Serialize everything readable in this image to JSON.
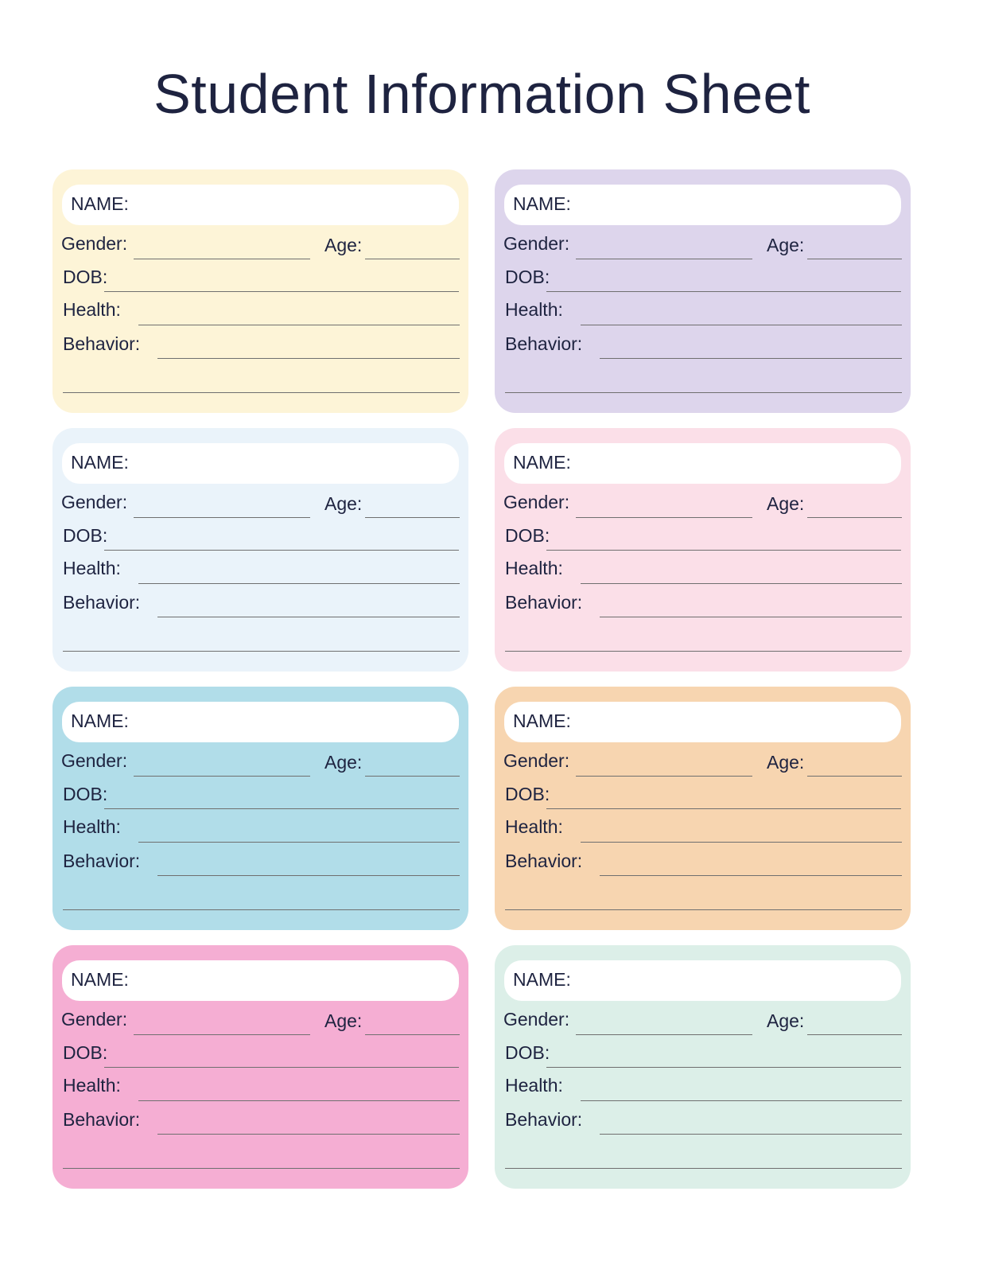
{
  "title": "Student Information Sheet",
  "labels": {
    "name": "NAME:",
    "gender": "Gender:",
    "age": "Age:",
    "dob": "DOB:",
    "health": "Health:",
    "behavior": "Behavior:"
  },
  "cards": [
    {
      "color": "#fdf4d7"
    },
    {
      "color": "#ddd5ec"
    },
    {
      "color": "#eaf3fa"
    },
    {
      "color": "#fbdfe8"
    },
    {
      "color": "#b1dde9"
    },
    {
      "color": "#f7d5b0"
    },
    {
      "color": "#f5aed3"
    },
    {
      "color": "#dcefe8"
    }
  ]
}
